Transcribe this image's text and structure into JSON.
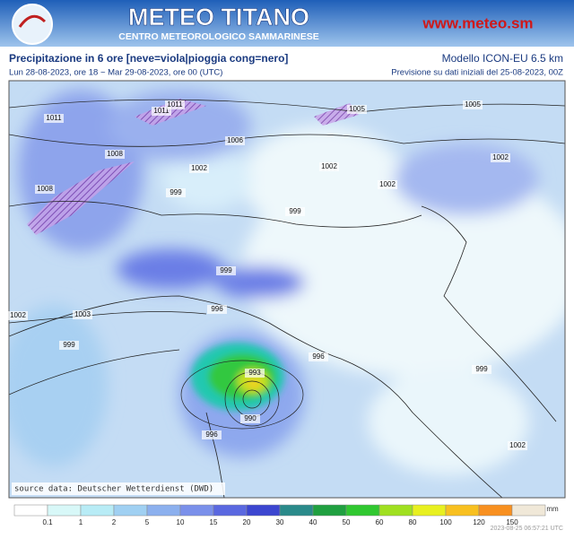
{
  "header": {
    "title": "METEO TITANO",
    "subtitle": "CENTRO METEOROLOGICO SAMMARINESE",
    "url": "www.meteo.sm"
  },
  "info": {
    "title": "Precipitazione in 6 ore [neve=viola|pioggia cong=nero]",
    "model": "Modello ICON-EU 6.5 km",
    "period": "Lun 28-08-2023, ore 18 ~ Mar 29-08-2023, ore 00 (UTC)",
    "run": "Previsione su dati iniziali del 25-08-2023, 00Z"
  },
  "map": {
    "isobar_labels": [
      "1011",
      "1011",
      "1011",
      "1005",
      "1005",
      "1006",
      "1008",
      "1002",
      "1002",
      "1002",
      "1002",
      "999",
      "999",
      "1008",
      "999",
      "996",
      "1002",
      "1003",
      "999",
      "996",
      "999",
      "993",
      "990",
      "996",
      "1002"
    ],
    "source": "source data: Deutscher Wetterdienst (DWD)"
  },
  "legend": {
    "unit": "mm",
    "labels": [
      "0.1",
      "1",
      "2",
      "5",
      "10",
      "15",
      "20",
      "30",
      "40",
      "50",
      "60",
      "80",
      "100",
      "120",
      "150"
    ],
    "colors": [
      "#ffffff",
      "#d8f8f8",
      "#b8ecf6",
      "#a0d0f2",
      "#8cb0ee",
      "#7a90ea",
      "#5a68e0",
      "#3c46d0",
      "#2a8a8a",
      "#20a040",
      "#30c830",
      "#a0e020",
      "#e8f020",
      "#f8c020",
      "#f89020",
      "#f0e8d8"
    ],
    "timestamp": "2023-08-25 06:57:21 UTC"
  }
}
